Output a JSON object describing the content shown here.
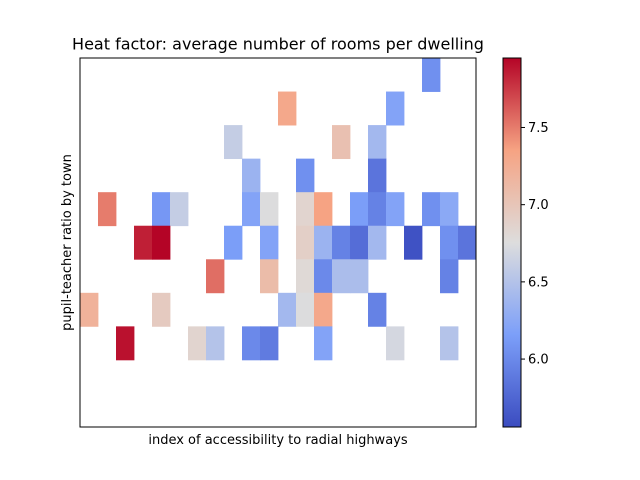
{
  "chart_data": {
    "type": "heatmap",
    "title": "Heat factor: average number of rooms per dwelling",
    "xlabel": "index of accessibility to radial highways",
    "ylabel": "pupil-teacher ratio by town",
    "x_ticks_shown": false,
    "y_ticks_shown": false,
    "grid": false,
    "colormap": "coolwarm",
    "color_range": [
      5.56,
      7.95
    ],
    "colorbar": {
      "position": "right",
      "ticks": [
        6.0,
        6.5,
        7.0,
        7.5
      ],
      "tick_labels": [
        "6.0",
        "6.5",
        "7.0",
        "7.5"
      ]
    },
    "n_cols": 22,
    "n_rows": 11,
    "cells": [
      {
        "col": 19,
        "row": 0,
        "value": 6.05
      },
      {
        "col": 11,
        "row": 1,
        "value": 7.3
      },
      {
        "col": 17,
        "row": 1,
        "value": 6.2
      },
      {
        "col": 8,
        "row": 2,
        "value": 6.6
      },
      {
        "col": 14,
        "row": 2,
        "value": 7.05
      },
      {
        "col": 16,
        "row": 2,
        "value": 6.4
      },
      {
        "col": 9,
        "row": 3,
        "value": 6.35
      },
      {
        "col": 12,
        "row": 3,
        "value": 6.05
      },
      {
        "col": 16,
        "row": 3,
        "value": 5.85
      },
      {
        "col": 1,
        "row": 4,
        "value": 7.5
      },
      {
        "col": 4,
        "row": 4,
        "value": 6.1
      },
      {
        "col": 5,
        "row": 4,
        "value": 6.6
      },
      {
        "col": 9,
        "row": 4,
        "value": 6.2
      },
      {
        "col": 10,
        "row": 4,
        "value": 6.75
      },
      {
        "col": 12,
        "row": 4,
        "value": 6.85
      },
      {
        "col": 13,
        "row": 4,
        "value": 7.35
      },
      {
        "col": 15,
        "row": 4,
        "value": 6.15
      },
      {
        "col": 16,
        "row": 4,
        "value": 5.95
      },
      {
        "col": 17,
        "row": 4,
        "value": 6.2
      },
      {
        "col": 19,
        "row": 4,
        "value": 6.05
      },
      {
        "col": 20,
        "row": 4,
        "value": 6.25
      },
      {
        "col": 3,
        "row": 5,
        "value": 7.85
      },
      {
        "col": 4,
        "row": 5,
        "value": 7.95
      },
      {
        "col": 8,
        "row": 5,
        "value": 6.15
      },
      {
        "col": 10,
        "row": 5,
        "value": 6.2
      },
      {
        "col": 12,
        "row": 5,
        "value": 6.9
      },
      {
        "col": 13,
        "row": 5,
        "value": 6.35
      },
      {
        "col": 14,
        "row": 5,
        "value": 5.95
      },
      {
        "col": 15,
        "row": 5,
        "value": 5.8
      },
      {
        "col": 16,
        "row": 5,
        "value": 6.4
      },
      {
        "col": 18,
        "row": 5,
        "value": 5.6
      },
      {
        "col": 20,
        "row": 5,
        "value": 6.05
      },
      {
        "col": 21,
        "row": 5,
        "value": 5.85
      },
      {
        "col": 7,
        "row": 6,
        "value": 7.55
      },
      {
        "col": 10,
        "row": 6,
        "value": 7.1
      },
      {
        "col": 12,
        "row": 6,
        "value": 6.8
      },
      {
        "col": 13,
        "row": 6,
        "value": 6.0
      },
      {
        "col": 14,
        "row": 6,
        "value": 6.45
      },
      {
        "col": 15,
        "row": 6,
        "value": 6.45
      },
      {
        "col": 20,
        "row": 6,
        "value": 5.95
      },
      {
        "col": 0,
        "row": 7,
        "value": 7.2
      },
      {
        "col": 4,
        "row": 7,
        "value": 6.95
      },
      {
        "col": 11,
        "row": 7,
        "value": 6.4
      },
      {
        "col": 12,
        "row": 7,
        "value": 6.75
      },
      {
        "col": 13,
        "row": 7,
        "value": 7.3
      },
      {
        "col": 16,
        "row": 7,
        "value": 5.95
      },
      {
        "col": 2,
        "row": 8,
        "value": 7.9
      },
      {
        "col": 6,
        "row": 8,
        "value": 6.85
      },
      {
        "col": 7,
        "row": 8,
        "value": 6.5
      },
      {
        "col": 9,
        "row": 8,
        "value": 6.0
      },
      {
        "col": 10,
        "row": 8,
        "value": 5.9
      },
      {
        "col": 13,
        "row": 8,
        "value": 6.2
      },
      {
        "col": 17,
        "row": 8,
        "value": 6.7
      },
      {
        "col": 20,
        "row": 8,
        "value": 6.5
      }
    ]
  },
  "colors": {
    "axes_edge": "#000000",
    "background": "#ffffff"
  }
}
